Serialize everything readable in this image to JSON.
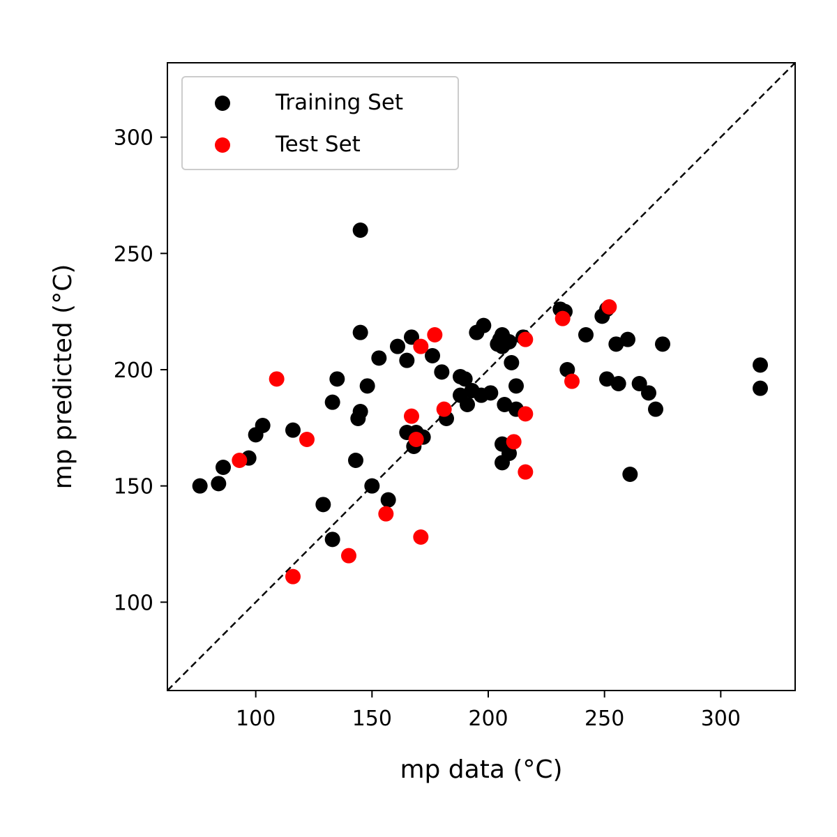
{
  "chart_data": {
    "type": "scatter",
    "xlabel": "mp data (°C)",
    "ylabel": "mp predicted (°C)",
    "xlim": [
      62,
      332
    ],
    "ylim": [
      62,
      332
    ],
    "x_ticks": [
      100,
      150,
      200,
      250,
      300
    ],
    "y_ticks": [
      100,
      150,
      200,
      250,
      300
    ],
    "grid": false,
    "legend_position": "top-left",
    "reference_line": {
      "style": "dashed",
      "color": "#000000",
      "from": [
        62,
        62
      ],
      "to": [
        332,
        332
      ]
    },
    "series": [
      {
        "name": "Training Set",
        "color": "#000000",
        "points": [
          [
            76,
            150
          ],
          [
            84,
            151
          ],
          [
            86,
            158
          ],
          [
            97,
            162
          ],
          [
            100,
            172
          ],
          [
            103,
            176
          ],
          [
            116,
            174
          ],
          [
            129,
            142
          ],
          [
            133,
            186
          ],
          [
            133,
            127
          ],
          [
            135,
            196
          ],
          [
            143,
            161
          ],
          [
            144,
            179
          ],
          [
            145,
            182
          ],
          [
            145,
            216
          ],
          [
            145,
            260
          ],
          [
            148,
            193
          ],
          [
            150,
            150
          ],
          [
            153,
            205
          ],
          [
            157,
            144
          ],
          [
            161,
            210
          ],
          [
            165,
            204
          ],
          [
            165,
            173
          ],
          [
            167,
            214
          ],
          [
            168,
            167
          ],
          [
            169,
            173
          ],
          [
            172,
            171
          ],
          [
            176,
            206
          ],
          [
            180,
            199
          ],
          [
            182,
            179
          ],
          [
            188,
            197
          ],
          [
            188,
            189
          ],
          [
            190,
            196
          ],
          [
            191,
            185
          ],
          [
            193,
            191
          ],
          [
            195,
            216
          ],
          [
            197,
            189
          ],
          [
            198,
            219
          ],
          [
            201,
            190
          ],
          [
            204,
            211
          ],
          [
            205,
            213
          ],
          [
            206,
            210
          ],
          [
            206,
            168
          ],
          [
            206,
            160
          ],
          [
            206,
            215
          ],
          [
            207,
            185
          ],
          [
            209,
            212
          ],
          [
            209,
            164
          ],
          [
            210,
            203
          ],
          [
            212,
            193
          ],
          [
            212,
            183
          ],
          [
            215,
            214
          ],
          [
            231,
            226
          ],
          [
            233,
            225
          ],
          [
            234,
            200
          ],
          [
            242,
            215
          ],
          [
            249,
            223
          ],
          [
            251,
            226
          ],
          [
            251,
            196
          ],
          [
            255,
            211
          ],
          [
            256,
            194
          ],
          [
            260,
            213
          ],
          [
            261,
            155
          ],
          [
            265,
            194
          ],
          [
            269,
            190
          ],
          [
            272,
            183
          ],
          [
            275,
            211
          ],
          [
            317,
            202
          ],
          [
            317,
            192
          ]
        ]
      },
      {
        "name": "Test Set",
        "color": "#ff0000",
        "points": [
          [
            93,
            161
          ],
          [
            109,
            196
          ],
          [
            116,
            111
          ],
          [
            122,
            170
          ],
          [
            140,
            120
          ],
          [
            156,
            138
          ],
          [
            167,
            180
          ],
          [
            169,
            170
          ],
          [
            171,
            128
          ],
          [
            171,
            210
          ],
          [
            177,
            215
          ],
          [
            181,
            183
          ],
          [
            211,
            169
          ],
          [
            216,
            181
          ],
          [
            216,
            156
          ],
          [
            216,
            213
          ],
          [
            232,
            222
          ],
          [
            236,
            195
          ],
          [
            252,
            227
          ]
        ]
      }
    ]
  }
}
